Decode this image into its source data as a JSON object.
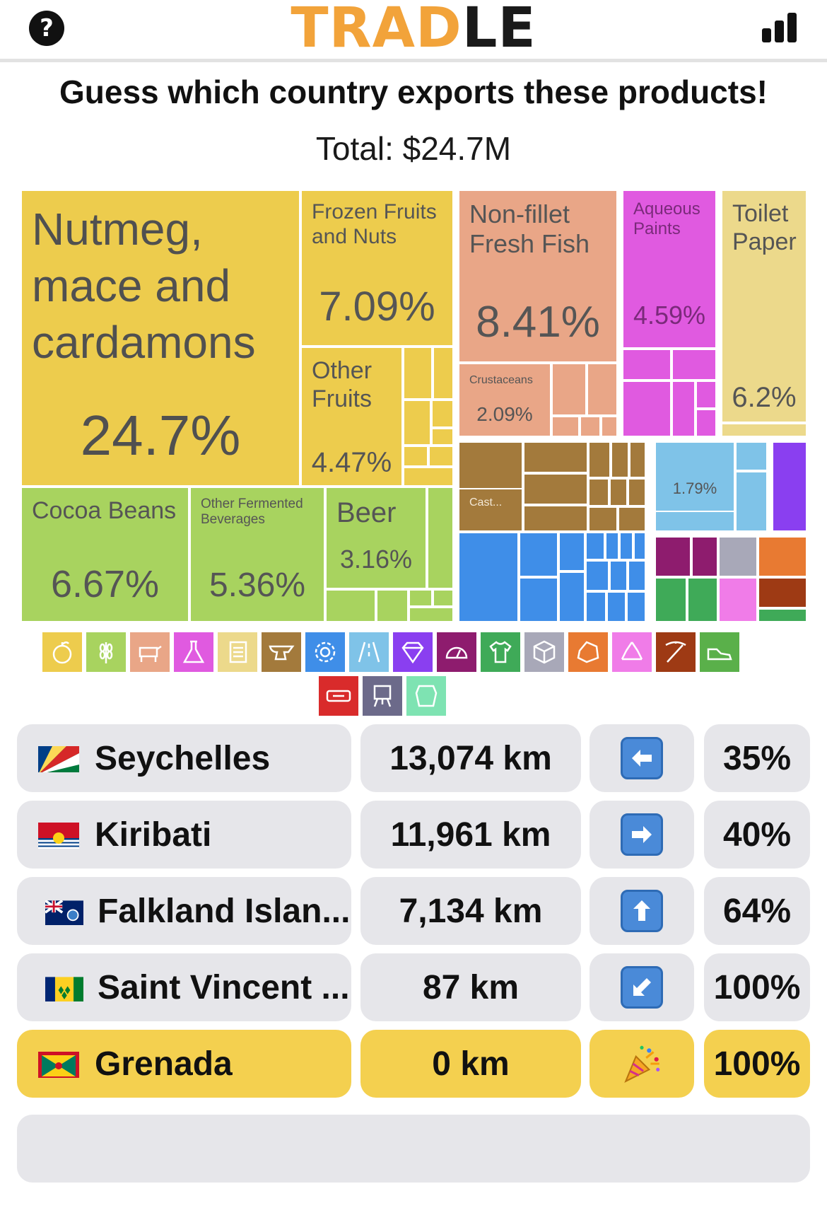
{
  "header": {
    "help_label": "?",
    "logo_part1": "TRAD",
    "logo_part2": "LE",
    "stats_icon": "bar-chart-icon"
  },
  "prompt": "Guess which country exports these products!",
  "total": "Total: $24.7M",
  "treemap": {
    "nutmeg": {
      "name": "Nutmeg, mace and cardamons",
      "percent": "24.7%",
      "color": "#edcc4d"
    },
    "frozen": {
      "name": "Frozen Fruits and Nuts",
      "percent": "7.09%",
      "color": "#edcc4d"
    },
    "other_fruits": {
      "name": "Other Fruits",
      "percent": "4.47%",
      "color": "#edcc4d"
    },
    "fish": {
      "name": "Non-fillet Fresh Fish",
      "percent": "8.41%",
      "color": "#e9a687"
    },
    "crustaceans": {
      "name": "Crustaceans",
      "percent": "2.09%",
      "color": "#e9a687"
    },
    "paints": {
      "name": "Aqueous Paints",
      "percent": "4.59%",
      "color": "#e05ae0"
    },
    "toilet": {
      "name": "Toilet Paper",
      "percent": "6.2%",
      "color": "#ecd98b"
    },
    "cocoa": {
      "name": "Cocoa Beans",
      "percent": "6.67%",
      "color": "#a8d35f"
    },
    "fermented": {
      "name": "Other Fermented Beverages",
      "percent": "5.36%",
      "color": "#a8d35f"
    },
    "beer": {
      "name": "Beer",
      "percent": "3.16%",
      "color": "#a8d35f"
    },
    "cast": {
      "name": "Cast...",
      "color": "#a37a3c"
    },
    "machinery": {
      "percent": "1.79%",
      "color": "#7fc3e8"
    }
  },
  "legend_icons": [
    "fruit-icon",
    "wheat-icon",
    "animal-icon",
    "flask-icon",
    "paper-icon",
    "anvil-icon",
    "gear-icon",
    "road-icon",
    "gem-icon",
    "gauge-icon",
    "shirt-icon",
    "box-icon",
    "stone-icon",
    "recycle-icon",
    "pickaxe-icon",
    "shoe-icon",
    "ticket-icon",
    "easel-icon",
    "leather-icon"
  ],
  "guesses": [
    {
      "country": "Seychelles",
      "distance": "13,074 km",
      "direction": "left-arrow-icon",
      "proximity": "35%"
    },
    {
      "country": "Kiribati",
      "distance": "11,961 km",
      "direction": "right-arrow-icon",
      "proximity": "40%"
    },
    {
      "country": "Falkland Islan...",
      "distance": "7,134 km",
      "direction": "up-arrow-icon",
      "proximity": "64%"
    },
    {
      "country": "Saint Vincent ...",
      "distance": "87 km",
      "direction": "down-left-arrow-icon",
      "proximity": "100%"
    },
    {
      "country": "Grenada",
      "distance": "0 km",
      "direction": "party-popper-icon",
      "proximity": "100%"
    }
  ]
}
